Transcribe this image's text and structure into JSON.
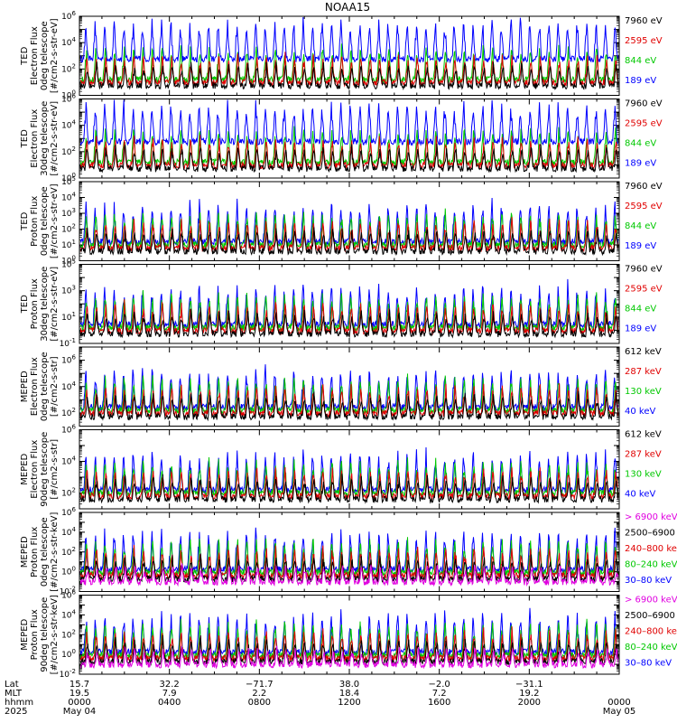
{
  "chart_data": {
    "title": "NOAA15",
    "type": "line",
    "x_label": "hhmm",
    "x_ticks": [
      "0000",
      "0400",
      "0800",
      "1200",
      "1600",
      "2000",
      "0000"
    ],
    "x_dates": [
      "May 04",
      "May 05"
    ],
    "footer_rows": [
      {
        "label": "Lat",
        "values": [
          "15.7",
          "32.2",
          "−71.7",
          "38.0",
          "−2.0",
          "−31.1",
          ""
        ]
      },
      {
        "label": "MLT",
        "values": [
          "19.5",
          "7.9",
          "2.2",
          "18.4",
          "7.2",
          "19.2",
          ""
        ]
      },
      {
        "label": "hhmm",
        "values": [
          "0000",
          "0400",
          "0800",
          "1200",
          "1600",
          "2000",
          "0000"
        ]
      },
      {
        "label": "2025",
        "values": [
          "May 04",
          "",
          "",
          "",
          "",
          "",
          "May 05"
        ]
      }
    ],
    "panels": [
      {
        "ylabel": [
          "TED",
          "Electron Flux",
          "0deg telescope",
          "[#/cm2-s-str-eV]"
        ],
        "scale": "log",
        "ylim_exp": [
          0,
          6
        ],
        "label_exps": [
          0,
          2,
          4,
          6
        ],
        "legend": [
          {
            "text": "7960 eV",
            "color": "#000000"
          },
          {
            "text": "2595 eV",
            "color": "#e00000"
          },
          {
            "text": "844 eV",
            "color": "#00c800"
          },
          {
            "text": "189 eV",
            "color": "#0000ff"
          }
        ]
      },
      {
        "ylabel": [
          "TED",
          "Electron Flux",
          "30deg telescope",
          "[#/cm2-s-str-eV]"
        ],
        "scale": "log",
        "ylim_exp": [
          0,
          6
        ],
        "label_exps": [
          0,
          2,
          4,
          6
        ],
        "legend": [
          {
            "text": "7960 eV",
            "color": "#000000"
          },
          {
            "text": "2595 eV",
            "color": "#e00000"
          },
          {
            "text": "844 eV",
            "color": "#00c800"
          },
          {
            "text": "189 eV",
            "color": "#0000ff"
          }
        ]
      },
      {
        "ylabel": [
          "TED",
          "Proton Flux",
          "0deg telescope",
          "[#/cm2-s-str-eV]"
        ],
        "scale": "log",
        "ylim_exp": [
          0,
          5
        ],
        "label_exps": [
          0,
          1,
          2,
          3,
          4,
          5
        ],
        "legend": [
          {
            "text": "7960 eV",
            "color": "#000000"
          },
          {
            "text": "2595 eV",
            "color": "#e00000"
          },
          {
            "text": "844 eV",
            "color": "#00c800"
          },
          {
            "text": "189 eV",
            "color": "#0000ff"
          }
        ]
      },
      {
        "ylabel": [
          "TED",
          "Proton Flux",
          "30deg telescope",
          "[#/cm2-s-str-eV]"
        ],
        "scale": "log",
        "ylim_exp": [
          -1,
          5
        ],
        "label_exps": [
          -1,
          1,
          3,
          5
        ],
        "legend": [
          {
            "text": "7960 eV",
            "color": "#000000"
          },
          {
            "text": "2595 eV",
            "color": "#e00000"
          },
          {
            "text": "844 eV",
            "color": "#00c800"
          },
          {
            "text": "189 eV",
            "color": "#0000ff"
          }
        ]
      },
      {
        "ylabel": [
          "MEPED",
          "Electron Flux",
          "0deg telescope",
          "[#/cm2-s-str]"
        ],
        "scale": "log",
        "ylim_exp": [
          1,
          7
        ],
        "label_exps": [
          2,
          4,
          6
        ],
        "legend": [
          {
            "text": "612 keV",
            "color": "#000000"
          },
          {
            "text": "287 keV",
            "color": "#e00000"
          },
          {
            "text": "130 keV",
            "color": "#00c800"
          },
          {
            "text": "40 keV",
            "color": "#0000ff"
          }
        ]
      },
      {
        "ylabel": [
          "MEPED",
          "Electron Flux",
          "90deg telescope",
          "[#/cm2-s-str]"
        ],
        "scale": "log",
        "ylim_exp": [
          1,
          6
        ],
        "label_exps": [
          2,
          4,
          6
        ],
        "legend": [
          {
            "text": "612 keV",
            "color": "#000000"
          },
          {
            "text": "287 keV",
            "color": "#e00000"
          },
          {
            "text": "130 keV",
            "color": "#00c800"
          },
          {
            "text": "40 keV",
            "color": "#0000ff"
          }
        ]
      },
      {
        "ylabel": [
          "MEPED",
          "Proton Flux",
          "0deg telescope",
          "[#/cm2-s-str-keV]"
        ],
        "scale": "log",
        "ylim_exp": [
          -2,
          6
        ],
        "label_exps": [
          -2,
          0,
          2,
          4,
          6
        ],
        "legend": [
          {
            "text": "> 6900 keV",
            "color": "#e000e0"
          },
          {
            "text": "2500–6900",
            "color": "#000000"
          },
          {
            "text": "240–800 ke",
            "color": "#e00000"
          },
          {
            "text": "80–240 keV",
            "color": "#00c800"
          },
          {
            "text": "30–80 keV",
            "color": "#0000ff"
          }
        ]
      },
      {
        "ylabel": [
          "MEPED",
          "Proton Flux",
          "90deg telescope",
          "[#/cm2-s-str-keV]"
        ],
        "scale": "log",
        "ylim_exp": [
          -2,
          6
        ],
        "label_exps": [
          -2,
          0,
          2,
          4,
          6
        ],
        "legend": [
          {
            "text": "> 6900 keV",
            "color": "#e000e0"
          },
          {
            "text": "2500–6900",
            "color": "#000000"
          },
          {
            "text": "240–800 ke",
            "color": "#e00000"
          },
          {
            "text": "80–240 keV",
            "color": "#00c800"
          },
          {
            "text": "30–80 keV",
            "color": "#0000ff"
          }
        ]
      }
    ]
  }
}
